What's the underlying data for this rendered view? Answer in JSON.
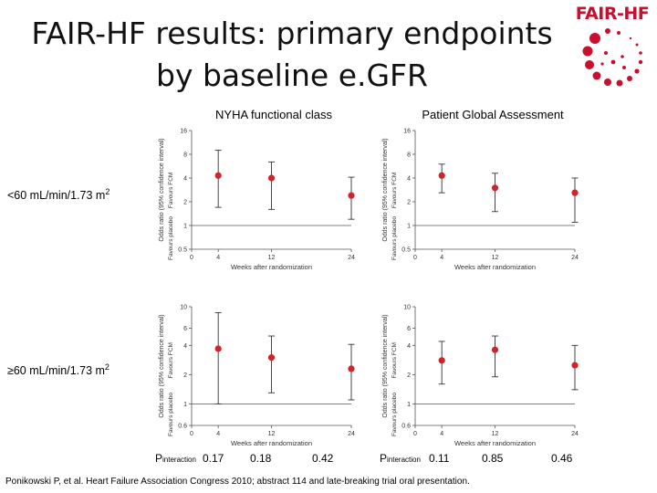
{
  "slide": {
    "title_line1": "FAIR-HF results: primary endpoints",
    "title_line2": "by baseline e.GFR",
    "logo_text": "FAIR-HF",
    "citation": "Ponikowski P, et al. Heart Failure Association Congress 2010; abstract 114 and late-breaking trial oral presentation."
  },
  "columns": [
    {
      "header": "NYHA functional class"
    },
    {
      "header": "Patient Global Assessment"
    }
  ],
  "rows": [
    {
      "label_main": "<60 mL/min/1.73 m",
      "label_sup": "2"
    },
    {
      "label_main": "≥60 mL/min/1.73 m",
      "label_sup": "2"
    }
  ],
  "p_interaction": {
    "label_main": "P",
    "label_sub": "interaction",
    "nyha": [
      "0.17",
      "0.18",
      "0.42"
    ],
    "pga": [
      "0.11",
      "0.85",
      "0.46"
    ]
  },
  "colors": {
    "point": "#d2232a",
    "whisker": "#333333",
    "logo": "#c8102e"
  },
  "chart_data": [
    {
      "type": "scatter",
      "column": "NYHA functional class",
      "row": "<60 mL/min/1.73 m2",
      "xlabel": "Weeks after randomization",
      "ylabel": "Odds ratio (95% confidence interval)",
      "ylabel_favours_top": "Favours FCM",
      "ylabel_favours_bottom": "Favours placebo",
      "y_scale": "log",
      "ylim": [
        0.5,
        16
      ],
      "y_ticks": [
        0.5,
        1,
        2,
        4,
        8,
        16
      ],
      "x_ticks": [
        0,
        4,
        12,
        24
      ],
      "xlim": [
        0,
        24
      ],
      "points": [
        {
          "x": 4,
          "y": 4.3,
          "low": 1.7,
          "high": 9.0
        },
        {
          "x": 12,
          "y": 4.0,
          "low": 1.6,
          "high": 6.4
        },
        {
          "x": 24,
          "y": 2.4,
          "low": 1.2,
          "high": 4.1
        }
      ]
    },
    {
      "type": "scatter",
      "column": "Patient Global Assessment",
      "row": "<60 mL/min/1.73 m2",
      "xlabel": "Weeks after randomization",
      "ylabel": "Odds ratio (95% confidence interval)",
      "ylabel_favours_top": "Favours FCM",
      "ylabel_favours_bottom": "Favours placebo",
      "y_scale": "log",
      "ylim": [
        0.5,
        16
      ],
      "y_ticks": [
        0.5,
        1,
        2,
        4,
        8,
        16
      ],
      "x_ticks": [
        0,
        4,
        12,
        24
      ],
      "xlim": [
        0,
        24
      ],
      "points": [
        {
          "x": 4,
          "y": 4.3,
          "low": 2.6,
          "high": 6.0
        },
        {
          "x": 12,
          "y": 3.0,
          "low": 1.5,
          "high": 4.6
        },
        {
          "x": 24,
          "y": 2.6,
          "low": 1.1,
          "high": 4.0
        }
      ]
    },
    {
      "type": "scatter",
      "column": "NYHA functional class",
      "row": "≥60 mL/min/1.73 m2",
      "xlabel": "Weeks after randomization",
      "ylabel": "Odds ratio (95% confidence interval)",
      "ylabel_favours_top": "Favours FCM",
      "ylabel_favours_bottom": "Favours placebo",
      "y_scale": "log",
      "ylim": [
        0.6,
        10
      ],
      "y_ticks": [
        0.6,
        1,
        2,
        4,
        6,
        10
      ],
      "x_ticks": [
        0,
        4,
        12,
        24
      ],
      "xlim": [
        0,
        24
      ],
      "points": [
        {
          "x": 4,
          "y": 3.7,
          "low": 1.0,
          "high": 8.7
        },
        {
          "x": 12,
          "y": 3.0,
          "low": 1.3,
          "high": 5.0
        },
        {
          "x": 24,
          "y": 2.3,
          "low": 1.1,
          "high": 4.1
        }
      ]
    },
    {
      "type": "scatter",
      "column": "Patient Global Assessment",
      "row": "≥60 mL/min/1.73 m2",
      "xlabel": "Weeks after randomization",
      "ylabel": "Odds ratio (95% confidence interval)",
      "ylabel_favours_top": "Favours FCM",
      "ylabel_favours_bottom": "Favours placebo",
      "y_scale": "log",
      "ylim": [
        0.6,
        10
      ],
      "y_ticks": [
        0.6,
        1,
        2,
        4,
        6,
        10
      ],
      "x_ticks": [
        0,
        4,
        12,
        24
      ],
      "xlim": [
        0,
        24
      ],
      "points": [
        {
          "x": 4,
          "y": 2.8,
          "low": 1.6,
          "high": 4.4
        },
        {
          "x": 12,
          "y": 3.6,
          "low": 1.9,
          "high": 5.0
        },
        {
          "x": 24,
          "y": 2.5,
          "low": 1.4,
          "high": 4.0
        }
      ]
    }
  ]
}
